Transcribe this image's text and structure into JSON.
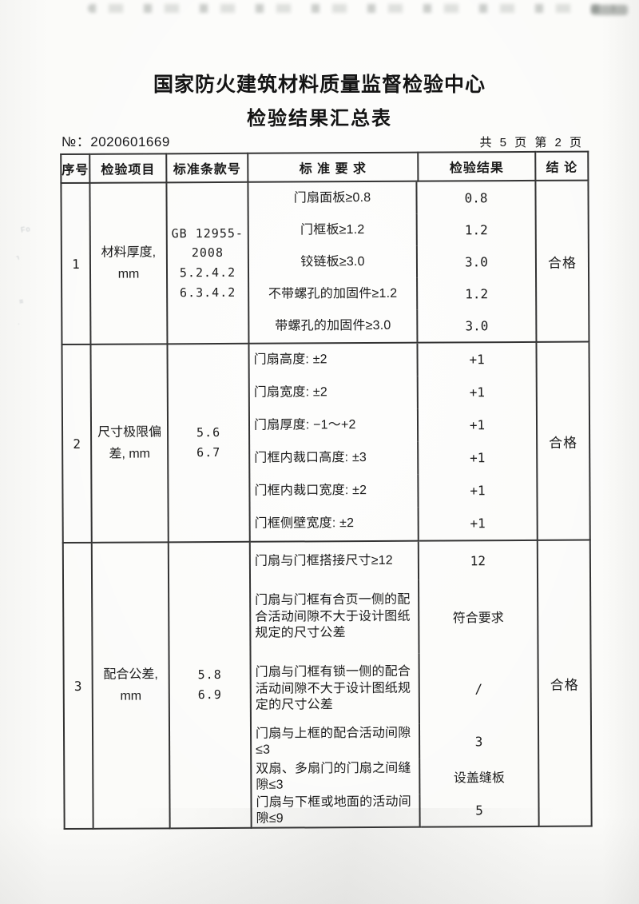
{
  "page": {
    "title_line1": "国家防火建筑材料质量监督检验中心",
    "title_line2": "检验结果汇总表",
    "report_no": "№：2020601669",
    "page_indicator": "共 5 页 第 2 页"
  },
  "table": {
    "headers": {
      "no": "序号",
      "item": "检验项目",
      "clause": "标准条款号",
      "requirement": "标 准 要 求",
      "result": "检验结果",
      "verdict": "结 论"
    },
    "rows": [
      {
        "no": "1",
        "item": "材料厚度, mm",
        "clause_lines": [
          "GB 12955-",
          "2008",
          "5.2.4.2",
          "6.3.4.2"
        ],
        "verdict": "合格",
        "subs": [
          {
            "req": "门扇面板≥0.8",
            "res": "0.8"
          },
          {
            "req": "门框板≥1.2",
            "res": "1.2"
          },
          {
            "req": "铰链板≥3.0",
            "res": "3.0"
          },
          {
            "req": "不带螺孔的加固件≥1.2",
            "res": "1.2"
          },
          {
            "req": "带螺孔的加固件≥3.0",
            "res": "3.0"
          }
        ]
      },
      {
        "no": "2",
        "item": "尺寸极限偏差, mm",
        "clause_lines": [
          "5.6",
          "6.7"
        ],
        "verdict": "合格",
        "subs": [
          {
            "req": "门扇高度: ±2",
            "res": "+1"
          },
          {
            "req": "门扇宽度: ±2",
            "res": "+1"
          },
          {
            "req": "门扇厚度: −1～+2",
            "res": "+1"
          },
          {
            "req": "门框内裁口高度: ±3",
            "res": "+1"
          },
          {
            "req": "门框内裁口宽度: ±2",
            "res": "+1"
          },
          {
            "req": "门框侧壁宽度: ±2",
            "res": "+1"
          }
        ]
      },
      {
        "no": "3",
        "item": "配合公差, mm",
        "clause_lines": [
          "5.8",
          "6.9"
        ],
        "verdict": "合格",
        "subs": [
          {
            "req": "门扇与门框搭接尺寸≥12",
            "res": "12"
          },
          {
            "req": "门扇与门框有合页一侧的配合活动间隙不大于设计图纸规定的尺寸公差",
            "res": "符合要求"
          },
          {
            "req": "门扇与门框有锁一侧的配合活动间隙不大于设计图纸规定的尺寸公差",
            "res": "/"
          },
          {
            "req": "门扇与上框的配合活动间隙≤3",
            "res": "3"
          },
          {
            "req": "双扇、多扇门的门扇之间缝隙≤3",
            "res": "设盖缝板"
          },
          {
            "req": "门扇与下框或地面的活动间隙≤9",
            "res": "5"
          }
        ]
      }
    ]
  }
}
